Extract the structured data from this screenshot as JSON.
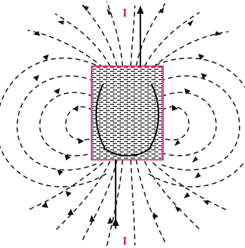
{
  "diagram": {
    "current_label_top": "I",
    "current_label_bottom": "I",
    "colors": {
      "field_lines": "#111111",
      "coil_outline": "#e23b8c",
      "label": "#d11d6a",
      "coil_fill": "#1a1a1a",
      "background": "#ffffff"
    }
  }
}
